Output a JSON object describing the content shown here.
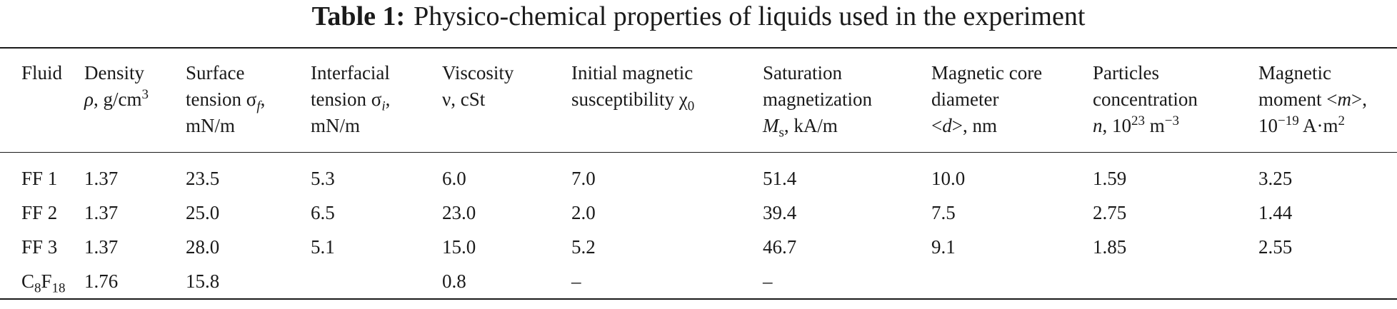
{
  "caption": {
    "label": "Table 1:",
    "text": "Physico-chemical properties of liquids used in the experiment"
  },
  "headers": [
    {
      "l1": "Fluid",
      "l2": "",
      "l3": ""
    },
    {
      "l1": "Density",
      "l2a": "ρ",
      "l2b": ", g/cm",
      "l2sup": "3"
    },
    {
      "l1": "Surface",
      "l2a": "tension σ",
      "l2sub": "f",
      "l2b": ",",
      "l3": "mN/m"
    },
    {
      "l1": "Interfacial",
      "l2a": "tension σ",
      "l2sub": "i",
      "l2b": ",",
      "l3": "mN/m"
    },
    {
      "l1": "Viscosity",
      "l2": "ν, cSt"
    },
    {
      "l1": "Initial magnetic",
      "l2a": "susceptibility χ",
      "l2sub": "0"
    },
    {
      "l1": "Saturation",
      "l2": "magnetization",
      "l3a": "M",
      "l3sub": "s",
      "l3b": ", kA/m"
    },
    {
      "l1": "Magnetic core",
      "l2": "diameter",
      "l3a": "<",
      "l3i": "d",
      "l3b": ">, nm"
    },
    {
      "l1": "Particles",
      "l2": "concentration",
      "l3a": "n",
      "l3b": ", 10",
      "l3sup": "23",
      "l3c": " m",
      "l3sup2": "−3"
    },
    {
      "l1": "Magnetic",
      "l2a": "moment <",
      "l2i": "m",
      "l2b": ">,",
      "l3a": "10",
      "l3sup": "−19",
      "l3b": " A·m",
      "l3sup2": "2"
    }
  ],
  "rows": [
    {
      "fluid": "FF 1",
      "density": "1.37",
      "surface": "23.5",
      "interfacial": "5.3",
      "viscosity": "6.0",
      "susceptibility": "7.0",
      "magnetization": "51.4",
      "diameter": "10.0",
      "concentration": "1.59",
      "moment": "3.25"
    },
    {
      "fluid": "FF 2",
      "density": "1.37",
      "surface": "25.0",
      "interfacial": "6.5",
      "viscosity": "23.0",
      "susceptibility": "2.0",
      "magnetization": "39.4",
      "diameter": "7.5",
      "concentration": "2.75",
      "moment": "1.44"
    },
    {
      "fluid": "FF 3",
      "density": "1.37",
      "surface": "28.0",
      "interfacial": "5.1",
      "viscosity": "15.0",
      "susceptibility": "5.2",
      "magnetization": "46.7",
      "diameter": "9.1",
      "concentration": "1.85",
      "moment": "2.55"
    },
    {
      "fluid_base": "C",
      "fluid_sub1": "8",
      "fluid_mid": "F",
      "fluid_sub2": "18",
      "density": "1.76",
      "surface": "15.8",
      "interfacial": "",
      "viscosity": "0.8",
      "susceptibility": "–",
      "magnetization": "–",
      "diameter": "",
      "concentration": "",
      "moment": ""
    }
  ]
}
